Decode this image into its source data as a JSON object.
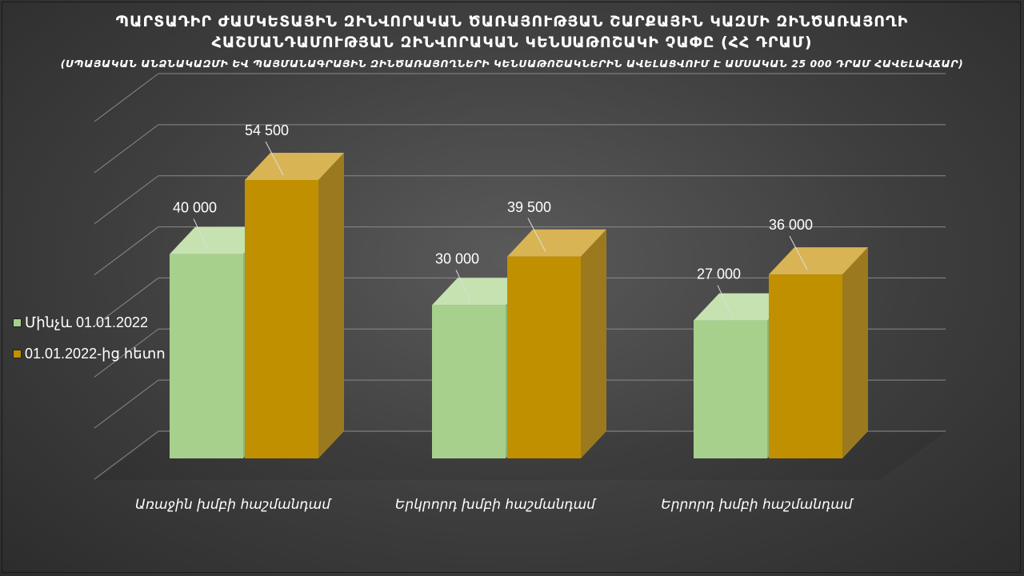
{
  "title_lines": [
    "ՊԱՐՏԱԴԻՐ ԺԱՄԿԵՏԱՅԻՆ ԶԻՆՎՈՐԱԿԱՆ ԾԱՌԱՅՈՒԹՅԱՆ ՇԱՐՔԱՅԻՆ ԿԱԶՄԻ ԶԻՆԾԱՌԱՅՈՂԻ",
    "ՀԱՇՄԱՆԴԱՄՈՒԹՅԱՆ ԶԻՆՎՈՐԱԿԱՆ ԿԵՆՍԱԹՈՇԱԿԻ ՉԱՓԸ (ՀՀ ԴՐԱՄ)",
    "(ՍՊԱՅԱԿԱՆ ԱՆՁՆԱԿԱԶՄԻ ԵՎ ՊԱՅՄԱՆԱԳՐԱՅԻՆ ԶԻՆԾԱՌԱՅՈՂՆԵՐԻ ԿԵՆՍԱԹՈՇԱԿՆԵՐԻՆ ԱՎԵԼԱՑՎՈՒՄ Է ԱՄՍԱԿԱՆ 25 000 ԴՐԱՄ ՀԱՎԵԼԱՎՃԱՐ)"
  ],
  "colors": {
    "series1": "#a8d08d",
    "series1_dark": "#8db675",
    "series2": "#c09000",
    "series2_dark": "#9b7a1f",
    "grid": "#8a8a8a",
    "label": "#ffffff"
  },
  "chart_data": {
    "type": "bar",
    "categories": [
      "Առաջին խմբի հաշմանդամ",
      "Երկրորդ խմբի հաշմանդամ",
      "Երրորդ խմբի հաշմանդամ"
    ],
    "series": [
      {
        "name": "Մինչև 01.01.2022",
        "values": [
          40000,
          30000,
          27000
        ]
      },
      {
        "name": "01.01.2022-ից հետո",
        "values": [
          54500,
          39500,
          36000
        ]
      }
    ],
    "data_labels": [
      [
        "40 000",
        "30 000",
        "27 000"
      ],
      [
        "54 500",
        "39 500",
        "36 000"
      ]
    ],
    "ylim": [
      0,
      70000
    ],
    "grid": true,
    "legend_position": "left"
  }
}
